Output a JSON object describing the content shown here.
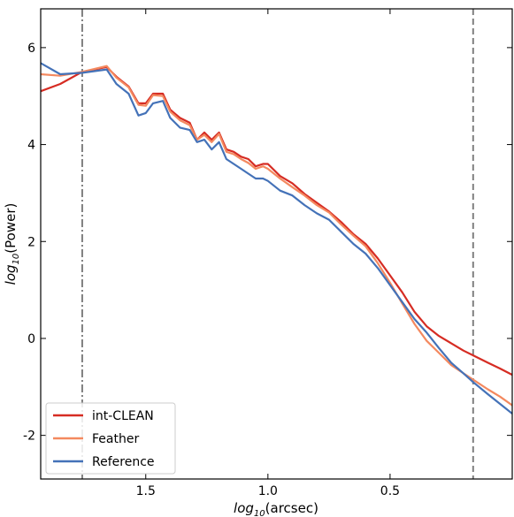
{
  "chart_data": {
    "type": "line",
    "xlabel_main": "log",
    "xlabel_sub": "10",
    "xlabel_rest": "(arcsec)",
    "ylabel_main": "log",
    "ylabel_sub": "10",
    "ylabel_rest": "(Power)",
    "x_reversed": true,
    "xlim": [
      1.93,
      0.0
    ],
    "ylim": [
      -2.9,
      6.8
    ],
    "xticks": [
      {
        "value": 1.5,
        "label": "1.5"
      },
      {
        "value": 1.0,
        "label": "1.0"
      },
      {
        "value": 0.5,
        "label": "0.5"
      }
    ],
    "yticks": [
      {
        "value": 6,
        "label": "6"
      },
      {
        "value": 4,
        "label": "4"
      },
      {
        "value": 2,
        "label": "2"
      },
      {
        "value": 0,
        "label": "0"
      },
      {
        "value": -2,
        "label": "-2"
      }
    ],
    "vlines": [
      {
        "x": 1.76,
        "style": "dashdot",
        "color": "#808080"
      },
      {
        "x": 0.16,
        "style": "dashed",
        "color": "#808080"
      }
    ],
    "legend_position": "bottom-left",
    "grid": false,
    "series": [
      {
        "name": "int-CLEAN",
        "color": "#d62c23",
        "x": [
          1.93,
          1.85,
          1.76,
          1.66,
          1.62,
          1.57,
          1.53,
          1.5,
          1.47,
          1.43,
          1.4,
          1.36,
          1.32,
          1.29,
          1.26,
          1.23,
          1.2,
          1.17,
          1.14,
          1.11,
          1.08,
          1.05,
          1.02,
          1.0,
          0.95,
          0.9,
          0.85,
          0.8,
          0.75,
          0.7,
          0.65,
          0.6,
          0.55,
          0.5,
          0.45,
          0.4,
          0.35,
          0.3,
          0.25,
          0.2,
          0.16,
          0.1,
          0.05,
          0.0
        ],
        "y": [
          5.1,
          5.25,
          5.5,
          5.6,
          5.4,
          5.2,
          4.85,
          4.85,
          5.05,
          5.05,
          4.72,
          4.55,
          4.45,
          4.1,
          4.25,
          4.1,
          4.25,
          3.9,
          3.85,
          3.75,
          3.7,
          3.55,
          3.6,
          3.6,
          3.35,
          3.2,
          2.98,
          2.8,
          2.62,
          2.4,
          2.15,
          1.95,
          1.65,
          1.3,
          0.95,
          0.55,
          0.25,
          0.05,
          -0.1,
          -0.25,
          -0.35,
          -0.5,
          -0.62,
          -0.75
        ]
      },
      {
        "name": "Feather",
        "color": "#f4895f",
        "x": [
          1.93,
          1.85,
          1.76,
          1.66,
          1.62,
          1.57,
          1.53,
          1.5,
          1.47,
          1.43,
          1.4,
          1.36,
          1.32,
          1.29,
          1.26,
          1.23,
          1.2,
          1.17,
          1.14,
          1.11,
          1.08,
          1.05,
          1.02,
          1.0,
          0.95,
          0.9,
          0.85,
          0.8,
          0.75,
          0.7,
          0.65,
          0.6,
          0.55,
          0.5,
          0.45,
          0.4,
          0.35,
          0.3,
          0.25,
          0.2,
          0.16,
          0.1,
          0.05,
          0.0
        ],
        "y": [
          5.45,
          5.42,
          5.5,
          5.62,
          5.38,
          5.18,
          4.82,
          4.8,
          5.02,
          5.0,
          4.68,
          4.5,
          4.4,
          4.1,
          4.2,
          4.05,
          4.22,
          3.85,
          3.8,
          3.7,
          3.62,
          3.5,
          3.55,
          3.5,
          3.3,
          3.12,
          2.95,
          2.75,
          2.6,
          2.35,
          2.12,
          1.9,
          1.55,
          1.15,
          0.72,
          0.3,
          -0.05,
          -0.3,
          -0.55,
          -0.72,
          -0.85,
          -1.05,
          -1.2,
          -1.38
        ]
      },
      {
        "name": "Reference",
        "color": "#4472b8",
        "x": [
          1.93,
          1.85,
          1.76,
          1.66,
          1.62,
          1.57,
          1.53,
          1.5,
          1.47,
          1.43,
          1.4,
          1.36,
          1.32,
          1.29,
          1.26,
          1.23,
          1.2,
          1.17,
          1.14,
          1.11,
          1.08,
          1.05,
          1.02,
          1.0,
          0.95,
          0.9,
          0.85,
          0.8,
          0.75,
          0.7,
          0.65,
          0.6,
          0.55,
          0.5,
          0.45,
          0.4,
          0.35,
          0.3,
          0.25,
          0.2,
          0.16,
          0.1,
          0.05,
          0.0
        ],
        "y": [
          5.68,
          5.45,
          5.48,
          5.55,
          5.25,
          5.05,
          4.6,
          4.65,
          4.85,
          4.9,
          4.55,
          4.35,
          4.3,
          4.05,
          4.1,
          3.9,
          4.05,
          3.7,
          3.6,
          3.5,
          3.4,
          3.3,
          3.3,
          3.25,
          3.05,
          2.95,
          2.75,
          2.58,
          2.45,
          2.2,
          1.95,
          1.75,
          1.45,
          1.1,
          0.75,
          0.4,
          0.12,
          -0.2,
          -0.5,
          -0.72,
          -0.9,
          -1.15,
          -1.35,
          -1.55
        ]
      }
    ]
  }
}
